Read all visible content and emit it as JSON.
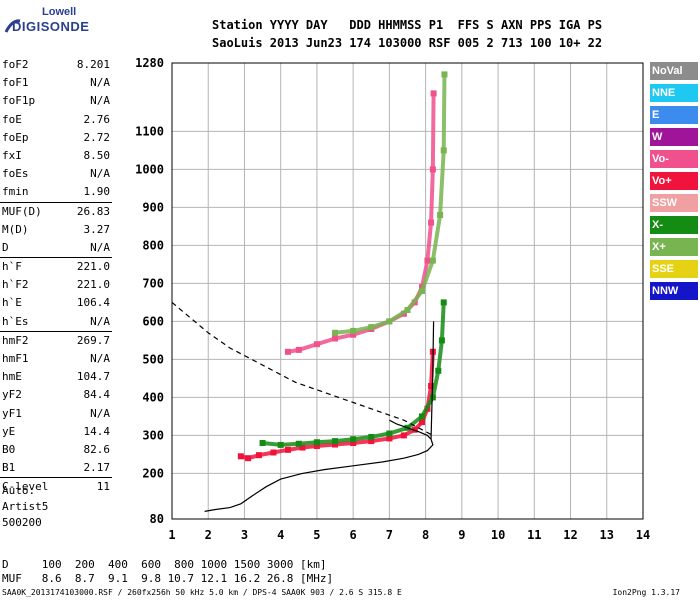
{
  "logo": {
    "line1": "Lowell",
    "line2": "DIGISONDE"
  },
  "header": {
    "line1": "Station YYYY DAY   DDD HHMMSS P1  FFS S AXN PPS IGA PS",
    "line2": "SaoLuis 2013 Jun23 174 103000 RSF 005 2 713 100 10+ 22"
  },
  "params": [
    {
      "label": "foF2",
      "value": "8.201"
    },
    {
      "label": "foF1",
      "value": "N/A"
    },
    {
      "label": "foF1p",
      "value": "N/A"
    },
    {
      "label": "foE",
      "value": "2.76"
    },
    {
      "label": "foEp",
      "value": "2.72"
    },
    {
      "label": "fxI",
      "value": "8.50"
    },
    {
      "label": "foEs",
      "value": "N/A"
    },
    {
      "label": "fmin",
      "value": "1.90"
    },
    {
      "label": "MUF(D)",
      "value": "26.83",
      "sep": true
    },
    {
      "label": "M(D)",
      "value": "3.27"
    },
    {
      "label": "D",
      "value": "N/A"
    },
    {
      "label": "h`F",
      "value": "221.0",
      "sep": true
    },
    {
      "label": "h`F2",
      "value": "221.0"
    },
    {
      "label": "h`E",
      "value": "106.4"
    },
    {
      "label": "h`Es",
      "value": "N/A"
    },
    {
      "label": "hmF2",
      "value": "269.7",
      "sep": true
    },
    {
      "label": "hmF1",
      "value": "N/A"
    },
    {
      "label": "hmE",
      "value": "104.7"
    },
    {
      "label": "yF2",
      "value": "84.4"
    },
    {
      "label": "yF1",
      "value": "N/A"
    },
    {
      "label": "yE",
      "value": "14.4"
    },
    {
      "label": "B0",
      "value": "82.6"
    },
    {
      "label": "B1",
      "value": "2.17"
    },
    {
      "label": "C-level",
      "value": "11",
      "sep": true
    }
  ],
  "auto": {
    "l1": "Auto:",
    "l2": "Artist5",
    "l3": "500200"
  },
  "legend": [
    {
      "label": "NoVal",
      "color": "#8c8c8c"
    },
    {
      "label": "NNE",
      "color": "#1ec8f0"
    },
    {
      "label": "E",
      "color": "#3c8cf0"
    },
    {
      "label": "W",
      "color": "#a0149a"
    },
    {
      "label": "Vo-",
      "color": "#f0508c"
    },
    {
      "label": "Vo+",
      "color": "#f0143c"
    },
    {
      "label": "SSW",
      "color": "#f0a0a0"
    },
    {
      "label": "X-",
      "color": "#148c14"
    },
    {
      "label": "X+",
      "color": "#78b450"
    },
    {
      "label": "SSE",
      "color": "#e6d214"
    },
    {
      "label": "NNW",
      "color": "#1414c8"
    }
  ],
  "dtable": {
    "row1": "D     100  200  400  600  800 1000 1500 3000 [km]",
    "row2": "MUF   8.6  8.7  9.1  9.8 10.7 12.1 16.2 26.8 [MHz]"
  },
  "footer": "SAA0K_2013174103000.RSF / 260fx256h 50 kHz 5.0 km / DPS-4 SAA0K 903 / 2.6 S 315.8 E",
  "version": "Ion2Png 1.3.17",
  "chart_data": {
    "type": "scatter",
    "title": "",
    "xlabel": "",
    "ylabel": "",
    "xlim": [
      1,
      14
    ],
    "ylim": [
      80,
      1280
    ],
    "xticks": [
      1,
      2,
      3,
      4,
      5,
      6,
      7,
      8,
      9,
      10,
      11,
      12,
      13,
      14
    ],
    "yticks": [
      80,
      200,
      300,
      400,
      500,
      600,
      700,
      800,
      900,
      1000,
      1100,
      1280
    ],
    "grid": true,
    "series": [
      {
        "name": "Vo+",
        "color": "#f0143c",
        "x": [
          2.9,
          3.1,
          3.4,
          3.8,
          4.2,
          4.6,
          5.0,
          5.5,
          6.0,
          6.5,
          7.0,
          7.4,
          7.7,
          7.9,
          8.05,
          8.15,
          8.2
        ],
        "y": [
          245,
          240,
          248,
          255,
          262,
          268,
          272,
          276,
          280,
          285,
          292,
          300,
          315,
          335,
          370,
          430,
          520
        ]
      },
      {
        "name": "Vo-",
        "color": "#f0508c",
        "x": [
          4.2,
          4.5,
          5.0,
          5.5,
          6.0,
          6.5,
          7.0,
          7.4,
          7.7,
          7.9,
          8.05,
          8.15,
          8.2,
          8.22
        ],
        "y": [
          520,
          525,
          540,
          555,
          565,
          580,
          600,
          620,
          650,
          690,
          760,
          860,
          1000,
          1200
        ]
      },
      {
        "name": "X-",
        "color": "#148c14",
        "x": [
          3.5,
          4.0,
          4.5,
          5.0,
          5.5,
          6.0,
          6.5,
          7.0,
          7.5,
          7.9,
          8.2,
          8.35,
          8.45,
          8.5
        ],
        "y": [
          280,
          275,
          278,
          282,
          285,
          290,
          296,
          305,
          320,
          350,
          400,
          470,
          550,
          650
        ]
      },
      {
        "name": "X+",
        "color": "#78b450",
        "x": [
          5.5,
          6.0,
          6.5,
          7.0,
          7.5,
          7.9,
          8.2,
          8.4,
          8.5,
          8.52
        ],
        "y": [
          570,
          575,
          585,
          600,
          630,
          680,
          760,
          880,
          1050,
          1250
        ]
      },
      {
        "name": "profile",
        "color": "#000000",
        "x": [
          1.9,
          2.2,
          2.6,
          2.9,
          3.2,
          3.6,
          4.0,
          4.6,
          5.2,
          6.0,
          6.8,
          7.4,
          7.8,
          8.05,
          8.2,
          8.15,
          8.05,
          7.8,
          7.5,
          7.2,
          7.0
        ],
        "y": [
          100,
          105,
          110,
          120,
          140,
          165,
          185,
          200,
          210,
          220,
          230,
          240,
          250,
          260,
          275,
          290,
          300,
          310,
          320,
          330,
          340
        ]
      },
      {
        "name": "profile-top",
        "color": "#000000",
        "x": [
          8.15,
          8.18,
          8.2,
          8.22
        ],
        "y": [
          290,
          400,
          480,
          600
        ]
      },
      {
        "name": "profile-dashed",
        "color": "#000000",
        "x": [
          1.0,
          1.5,
          2.0,
          2.6,
          3.2,
          3.8,
          4.4,
          5.0,
          5.6,
          6.2,
          6.8,
          7.4,
          8.0,
          8.2
        ],
        "y": [
          650,
          610,
          570,
          530,
          500,
          470,
          440,
          420,
          400,
          380,
          360,
          340,
          310,
          300
        ]
      }
    ]
  }
}
